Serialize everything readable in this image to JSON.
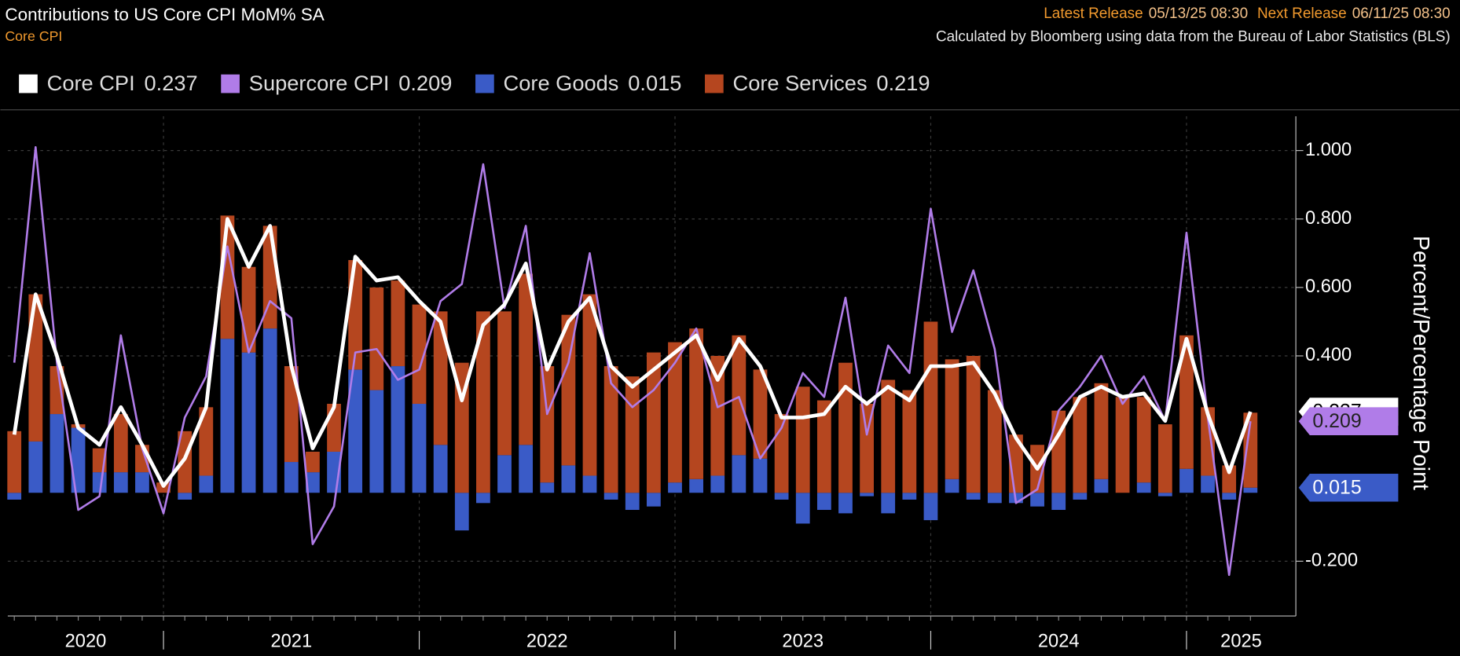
{
  "header": {
    "title": "Contributions to US Core CPI MoM% SA",
    "subtitle": "Core CPI",
    "latest_label": "Latest Release",
    "latest_value": "05/13/25 08:30",
    "next_label": "Next Release",
    "next_value": "06/11/25 08:30",
    "source": "Calculated by Bloomberg using data from the Bureau of Labor Statistics (BLS)"
  },
  "chart_data": {
    "type": "combo",
    "y_label": "Percent/Percentage Point",
    "categories": [
      null,
      null,
      null,
      null,
      null,
      null,
      null,
      null,
      null,
      null,
      null,
      null,
      null,
      null,
      null,
      null,
      null,
      null,
      null,
      null,
      null,
      null,
      null,
      null,
      null,
      null,
      null,
      null,
      null,
      null,
      null,
      null,
      null,
      null,
      null,
      null,
      null,
      null,
      null,
      null,
      null,
      null,
      null,
      null,
      null,
      null,
      null,
      null,
      null,
      null,
      null,
      null,
      null,
      null,
      null,
      null,
      null,
      null,
      null
    ],
    "xticks": [
      2020,
      2021,
      2022,
      2023,
      2024,
      2025
    ],
    "ylim": [
      -0.36,
      1.1
    ],
    "yticks": [
      {
        "value": -0.2,
        "label": "-0.200"
      },
      {
        "value": 0.4,
        "label": "0.400"
      },
      {
        "value": 0.6,
        "label": "0.600"
      },
      {
        "value": 0.8,
        "label": "0.800"
      },
      {
        "value": 1.0,
        "label": "1.000"
      }
    ],
    "grid": true,
    "series": [
      {
        "name": "Core CPI",
        "type": "line",
        "color": "#ffffff",
        "values": [
          0.17,
          0.58,
          0.4,
          0.19,
          0.14,
          0.25,
          0.14,
          0.02,
          0.1,
          0.25,
          0.8,
          0.66,
          0.78,
          0.37,
          0.13,
          0.25,
          0.69,
          0.62,
          0.63,
          0.56,
          0.5,
          0.27,
          0.49,
          0.55,
          0.67,
          0.36,
          0.5,
          0.57,
          0.37,
          0.31,
          0.36,
          0.41,
          0.46,
          0.33,
          0.45,
          0.37,
          0.22,
          0.22,
          0.23,
          0.31,
          0.26,
          0.31,
          0.27,
          0.37,
          0.37,
          0.38,
          0.29,
          0.16,
          0.07,
          0.17,
          0.28,
          0.31,
          0.28,
          0.29,
          0.21,
          0.45,
          0.23,
          0.06,
          0.237
        ]
      },
      {
        "name": "Supercore CPI",
        "type": "line",
        "color": "#b07ce8",
        "values": [
          0.38,
          1.01,
          0.38,
          -0.05,
          -0.01,
          0.46,
          0.13,
          -0.06,
          0.22,
          0.34,
          0.72,
          0.41,
          0.56,
          0.51,
          -0.15,
          -0.04,
          0.41,
          0.42,
          0.33,
          0.36,
          0.56,
          0.61,
          0.96,
          0.54,
          0.78,
          0.23,
          0.38,
          0.7,
          0.32,
          0.25,
          0.3,
          0.38,
          0.48,
          0.25,
          0.28,
          0.1,
          0.19,
          0.35,
          0.28,
          0.57,
          0.17,
          0.43,
          0.35,
          0.83,
          0.47,
          0.65,
          0.42,
          -0.03,
          0.01,
          0.24,
          0.31,
          0.4,
          0.26,
          0.34,
          0.21,
          0.76,
          0.22,
          -0.24,
          0.209
        ]
      },
      {
        "name": "Core Goods",
        "type": "bar",
        "color": "#3a5bc7",
        "values": [
          -0.02,
          0.15,
          0.23,
          0.19,
          0.06,
          0.06,
          0.06,
          0.0,
          -0.02,
          0.05,
          0.45,
          0.41,
          0.48,
          0.09,
          0.06,
          0.12,
          0.36,
          0.3,
          0.37,
          0.26,
          0.14,
          -0.11,
          -0.03,
          0.11,
          0.14,
          0.03,
          0.08,
          0.05,
          -0.02,
          -0.05,
          -0.04,
          0.03,
          0.04,
          0.05,
          0.11,
          0.1,
          -0.02,
          -0.09,
          -0.05,
          -0.06,
          -0.01,
          -0.06,
          -0.02,
          -0.08,
          0.04,
          -0.02,
          -0.03,
          -0.03,
          -0.04,
          -0.05,
          -0.02,
          0.04,
          0.0,
          0.03,
          -0.01,
          0.07,
          0.05,
          -0.02,
          0.015
        ]
      },
      {
        "name": "Core Services",
        "type": "bar",
        "color": "#b5461f",
        "values": [
          0.18,
          0.43,
          0.14,
          0.01,
          0.07,
          0.17,
          0.08,
          0.03,
          0.18,
          0.2,
          0.36,
          0.25,
          0.3,
          0.28,
          0.06,
          0.14,
          0.32,
          0.3,
          0.25,
          0.29,
          0.39,
          0.38,
          0.53,
          0.42,
          0.5,
          0.34,
          0.44,
          0.53,
          0.37,
          0.34,
          0.41,
          0.41,
          0.44,
          0.35,
          0.35,
          0.26,
          0.23,
          0.31,
          0.27,
          0.38,
          0.26,
          0.33,
          0.3,
          0.5,
          0.35,
          0.4,
          0.3,
          0.17,
          0.14,
          0.24,
          0.28,
          0.28,
          0.28,
          0.25,
          0.2,
          0.39,
          0.2,
          0.08,
          0.219
        ]
      }
    ]
  }
}
